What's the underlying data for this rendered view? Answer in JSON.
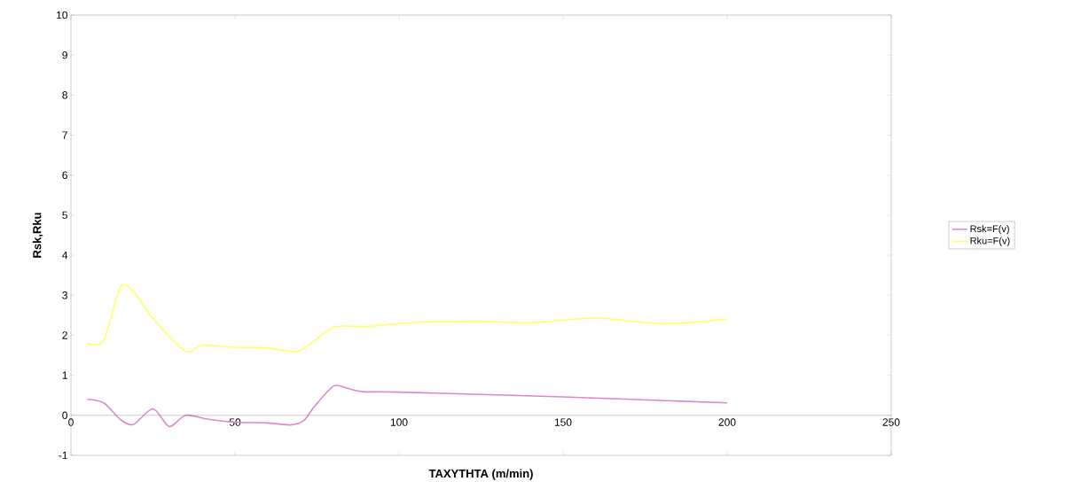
{
  "chart_data": {
    "type": "line",
    "xlabel": "TAXYTHTA (m/min)",
    "ylabel": "Rsk,Rku",
    "xlim": [
      0,
      250
    ],
    "xticks": [
      0,
      50,
      100,
      150,
      200,
      250
    ],
    "ylim": [
      -1,
      10
    ],
    "yticks": [
      -1,
      0,
      1,
      2,
      3,
      4,
      5,
      6,
      7,
      8,
      9,
      10
    ],
    "grid": false,
    "legend": "right",
    "marker": "none",
    "line_style": "solid",
    "series": [
      {
        "name": "Rsk=F(v)",
        "color": "#dd88cc",
        "x": [
          5,
          10,
          15,
          19,
          25,
          30,
          35,
          42,
          50,
          60,
          67,
          71,
          74,
          80,
          84,
          89,
          100,
          150,
          200
        ],
        "values": [
          0.4,
          0.31,
          -0.1,
          -0.23,
          0.16,
          -0.28,
          0,
          -0.1,
          -0.17,
          -0.19,
          -0.24,
          -0.13,
          0.2,
          0.73,
          0.68,
          0.59,
          0.58,
          0.46,
          0.31
        ]
      },
      {
        "name": "Rku=F(v)",
        "color": "#ffff66",
        "x": [
          5,
          10,
          15,
          19,
          25,
          35,
          40,
          50,
          60,
          68,
          72,
          80,
          90,
          100,
          108,
          125,
          140,
          160,
          180,
          200
        ],
        "values": [
          1.8,
          1.87,
          3.2,
          3.09,
          2.42,
          1.6,
          1.75,
          1.7,
          1.68,
          1.59,
          1.72,
          2.2,
          2.22,
          2.29,
          2.33,
          2.35,
          2.31,
          2.43,
          2.29,
          2.4
        ]
      }
    ]
  }
}
